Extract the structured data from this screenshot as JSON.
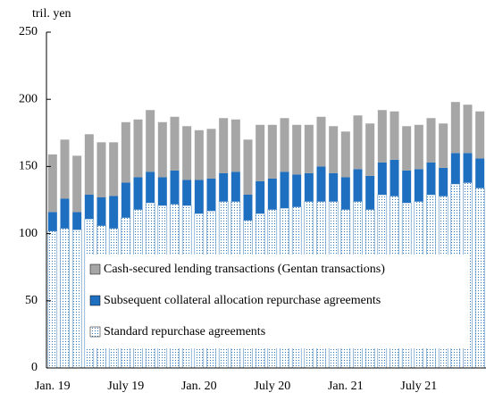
{
  "chart_data": {
    "type": "stacked_bar",
    "y_axis_label": "tril. yen",
    "categories": [
      "Jan. 19",
      null,
      null,
      null,
      null,
      null,
      "July 19",
      null,
      null,
      null,
      null,
      null,
      "Jan. 20",
      null,
      null,
      null,
      null,
      null,
      "July 20",
      null,
      null,
      null,
      null,
      null,
      "Jan. 21",
      null,
      null,
      null,
      null,
      null,
      "July 21",
      null,
      null,
      null,
      null,
      null
    ],
    "series": [
      {
        "name": "Standard repurchase agreements",
        "color": "#ffffff",
        "values": [
          102,
          104,
          103,
          111,
          106,
          104,
          112,
          118,
          123,
          121,
          122,
          121,
          115,
          117,
          124,
          124,
          110,
          115,
          118,
          119,
          120,
          124,
          124,
          124,
          118,
          124,
          118,
          129,
          128,
          123,
          124,
          129,
          128,
          137,
          138,
          134
        ]
      },
      {
        "name": "Subsequent collateral allocation repurchase agreements",
        "color": "#1f6fc0",
        "values": [
          14,
          22,
          13,
          18,
          21,
          24,
          26,
          24,
          23,
          21,
          25,
          19,
          25,
          24,
          21,
          22,
          19,
          24,
          23,
          27,
          24,
          21,
          26,
          21,
          24,
          24,
          25,
          24,
          27,
          24,
          24,
          24,
          21,
          23,
          22,
          22
        ]
      },
      {
        "name": "Cash-secured lending transactions (Gentan transactions)",
        "color": "#a6a6a6",
        "values": [
          43,
          44,
          42,
          45,
          41,
          40,
          45,
          43,
          46,
          41,
          40,
          40,
          37,
          37,
          41,
          39,
          41,
          42,
          40,
          40,
          37,
          36,
          37,
          35,
          34,
          40,
          39,
          39,
          36,
          33,
          33,
          33,
          33,
          38,
          36,
          35
        ]
      }
    ],
    "ylim": [
      0,
      250
    ],
    "yticks": [
      0,
      50,
      100,
      150,
      200,
      250
    ]
  }
}
